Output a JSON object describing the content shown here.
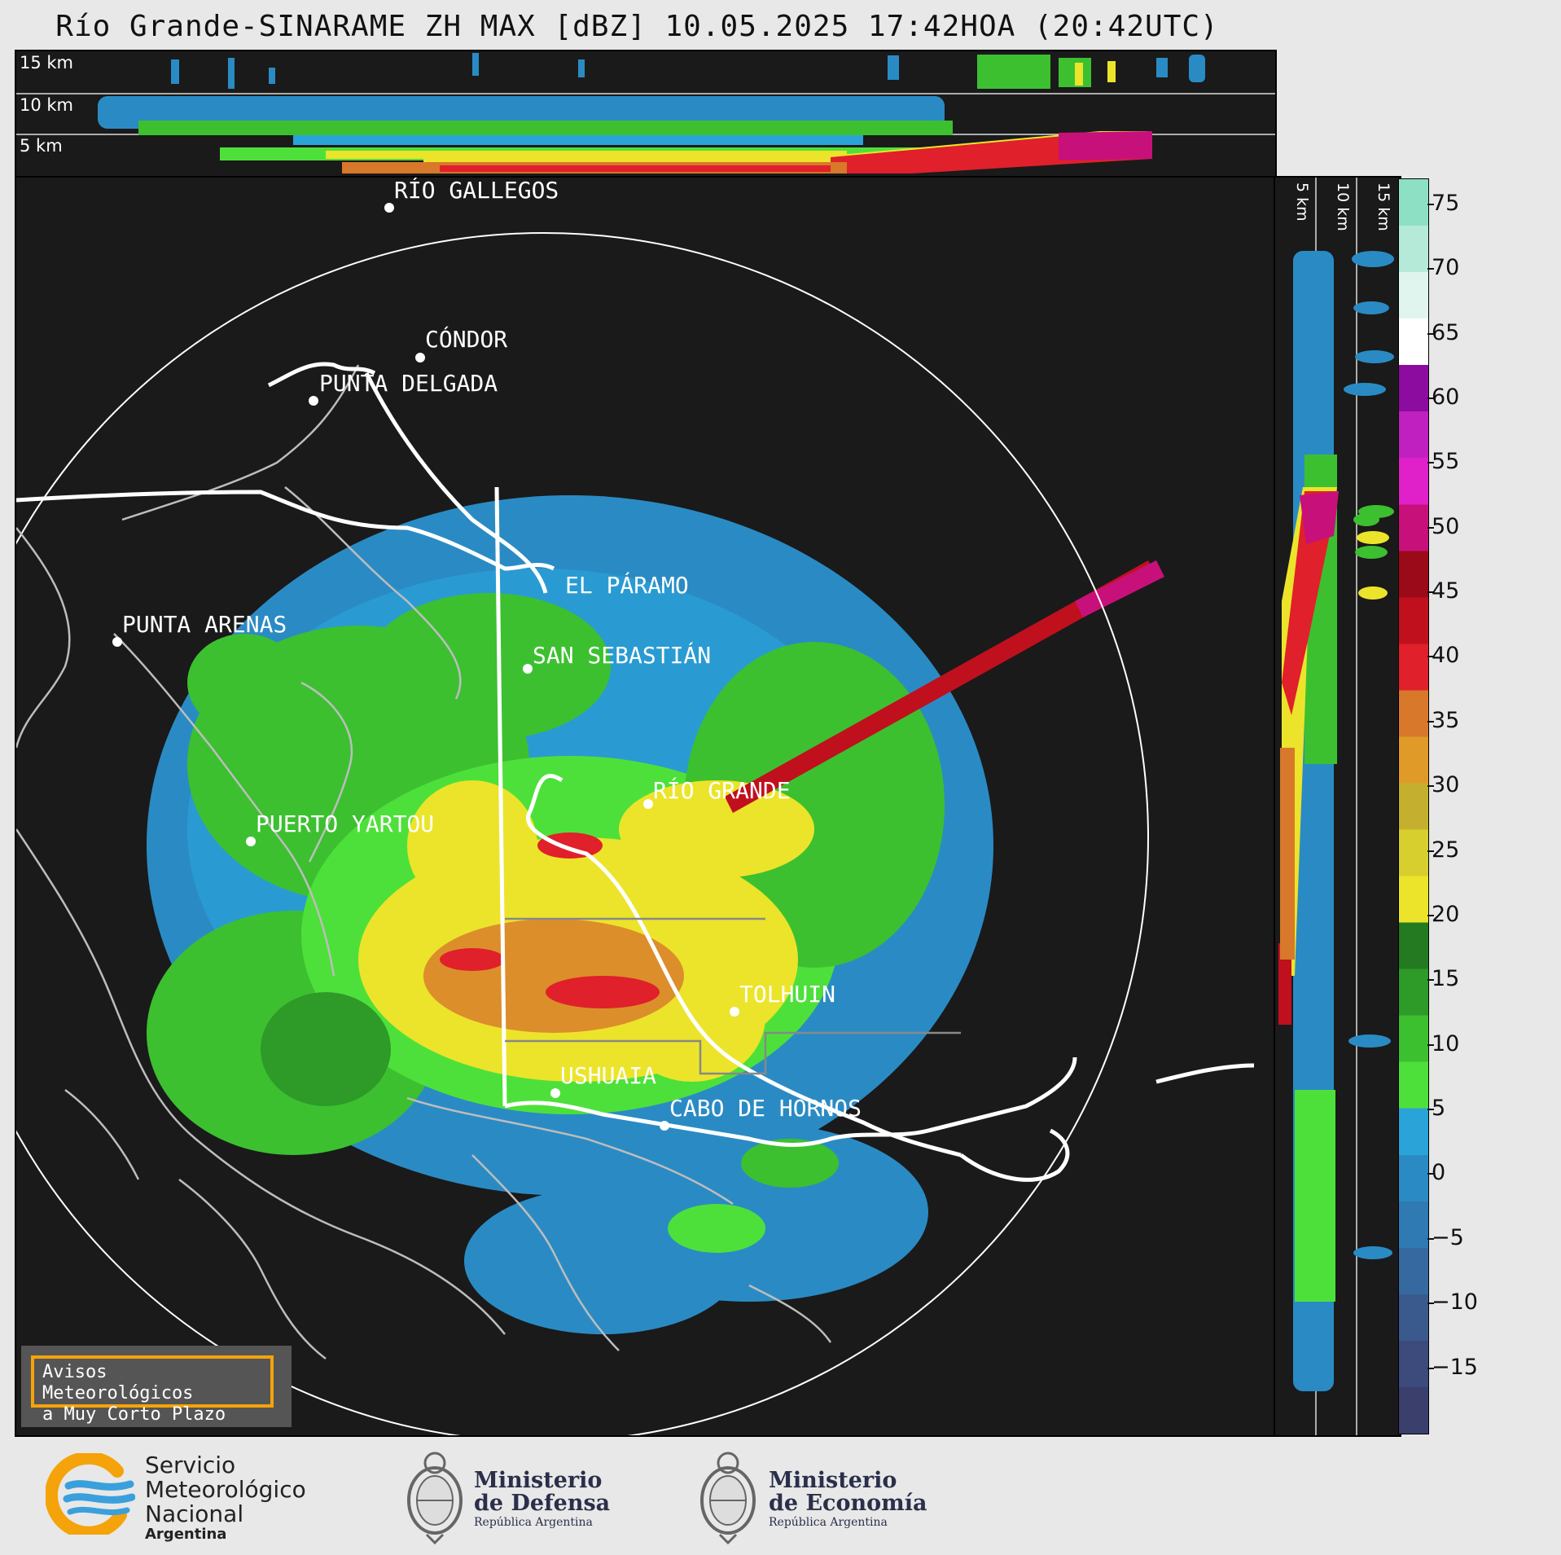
{
  "title": "Río Grande-SINARAME ZH MAX [dBZ] 10.05.2025 17:42HOA (20:42UTC)",
  "top_panel": {
    "height_labels": [
      "15 km",
      "10 km",
      "5 km"
    ]
  },
  "side_panel": {
    "height_labels": [
      "5 km",
      "10 km",
      "15 km"
    ]
  },
  "colorbar": {
    "unit": "dBZ",
    "min": -20,
    "max": 77,
    "ticks": [
      "75",
      "70",
      "65",
      "60",
      "55",
      "50",
      "45",
      "40",
      "35",
      "30",
      "25",
      "20",
      "15",
      "10",
      "5",
      "0",
      "−5",
      "−10",
      "−15"
    ],
    "colors": [
      "#3b3f6b",
      "#3c4a7c",
      "#3a5a8e",
      "#36699f",
      "#2f7ab3",
      "#2a8bc4",
      "#2aa3d9",
      "#4ee03a",
      "#3cc030",
      "#2e9a28",
      "#237a20",
      "#ece42a",
      "#d6cf2e",
      "#c4b02e",
      "#e09a28",
      "#d8782a",
      "#e0202a",
      "#c0101e",
      "#9a0a18",
      "#c8107a",
      "#e020c8",
      "#c020c0",
      "#8c0ca0",
      "#ffffff",
      "#e0f5ee",
      "#b6ead8",
      "#8ee0c4"
    ]
  },
  "places": [
    {
      "name": "RÍO GALLEGOS"
    },
    {
      "name": "CÓNDOR"
    },
    {
      "name": "PUNTA DELGADA"
    },
    {
      "name": "EL PÁRAMO"
    },
    {
      "name": "SAN SEBASTIÁN"
    },
    {
      "name": "PUNTA ARENAS"
    },
    {
      "name": "RÍO GRANDE"
    },
    {
      "name": "PUERTO YARTOU"
    },
    {
      "name": "TOLHUIN"
    },
    {
      "name": "USHUAIA"
    },
    {
      "name": "CABO DE HORNOS"
    }
  ],
  "avisos": {
    "line1": "Avisos Meteorológicos",
    "line2": "a Muy Corto Plazo"
  },
  "footer": {
    "smn": {
      "l1": "Servicio",
      "l2": "Meteorológico",
      "l3": "Nacional",
      "l4": "Argentina"
    },
    "defensa": {
      "l1": "Ministerio",
      "l2": "de Defensa",
      "sub": "República Argentina"
    },
    "economia": {
      "l1": "Ministerio",
      "l2": "de Economía",
      "sub": "República Argentina"
    }
  }
}
